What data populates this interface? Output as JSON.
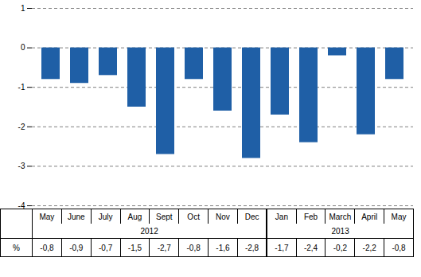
{
  "chart_data": {
    "type": "bar",
    "categories": [
      "May",
      "June",
      "July",
      "Aug",
      "Sept",
      "Oct",
      "Nov",
      "Dec",
      "Jan",
      "Feb",
      "March",
      "April",
      "May"
    ],
    "values": [
      -0.8,
      -0.9,
      -0.7,
      -1.5,
      -2.7,
      -0.8,
      -1.6,
      -2.8,
      -1.7,
      -2.4,
      -0.2,
      -2.2,
      -0.8
    ],
    "value_labels": [
      "-0,8",
      "-0,9",
      "-0,7",
      "-1,5",
      "-2,7",
      "-0,8",
      "-1,6",
      "-2,8",
      "-1,7",
      "-2,4",
      "-0,2",
      "-2,2",
      "-0,8"
    ],
    "data_labels": true,
    "value_label_title": "%",
    "category_groups": [
      {
        "label": "2012",
        "count": 8
      },
      {
        "label": "2013",
        "count": 5
      }
    ],
    "color": "#1f5fa6",
    "ylim": [
      -4,
      1
    ],
    "yticks": [
      -4,
      -3,
      -2,
      -1,
      0,
      1
    ],
    "grid": true
  }
}
